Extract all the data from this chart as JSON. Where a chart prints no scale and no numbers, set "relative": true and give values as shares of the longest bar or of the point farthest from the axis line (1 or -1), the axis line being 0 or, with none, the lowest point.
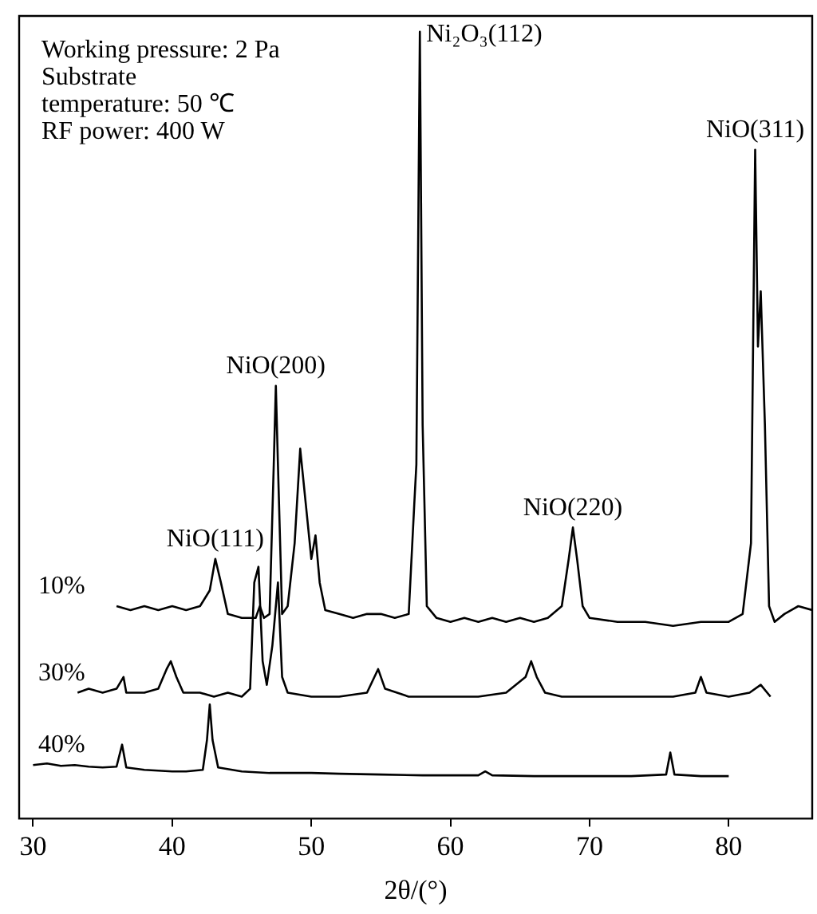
{
  "chart_data": {
    "type": "line",
    "relative": true,
    "xlabel": "2θ/(°)",
    "xlim": [
      29,
      86
    ],
    "xticks": [
      30,
      40,
      50,
      60,
      70,
      80
    ],
    "legend": false,
    "marker": "none",
    "line_style": "solid",
    "annotations": [
      "Working pressure: 2 Pa",
      "Substrate",
      "temperature: 50 ℃",
      "RF power: 400 W",
      {
        "text": "NiO(111)",
        "x": 43.1,
        "y": 0.33
      },
      {
        "text": "NiO(200)",
        "x": 47.45,
        "y": 0.55
      },
      {
        "text": "Ni₂O₃(112)",
        "x": 57.8,
        "y": 1.0
      },
      {
        "text": "NiO(220)",
        "x": 68.8,
        "y": 0.37
      },
      {
        "text": "NiO(311)",
        "x": 81.9,
        "y": 0.85
      }
    ],
    "series": [
      {
        "name": "10%",
        "color": "#000000",
        "x": [
          36,
          37,
          38,
          39,
          40,
          41,
          42,
          42.7,
          43.1,
          43.5,
          44,
          45,
          46,
          46.3,
          46.6,
          47,
          47.3,
          47.45,
          47.6,
          47.9,
          48.3,
          48.8,
          49.2,
          49.6,
          50,
          50.3,
          50.6,
          51,
          52,
          53,
          54,
          55,
          56,
          57,
          57.4,
          57.55,
          57.8,
          58,
          58.3,
          59,
          60,
          61,
          62,
          63,
          64,
          65,
          66,
          67,
          68,
          68.5,
          68.8,
          69.1,
          69.5,
          70,
          72,
          74,
          76,
          78,
          80,
          81,
          81.6,
          81.9,
          82.1,
          82.3,
          82.6,
          82.9,
          83.3,
          84,
          85,
          86
        ],
        "values": [
          0.27,
          0.265,
          0.27,
          0.265,
          0.27,
          0.265,
          0.27,
          0.29,
          0.33,
          0.3,
          0.26,
          0.255,
          0.255,
          0.27,
          0.255,
          0.26,
          0.45,
          0.55,
          0.45,
          0.26,
          0.27,
          0.35,
          0.47,
          0.4,
          0.33,
          0.36,
          0.3,
          0.265,
          0.26,
          0.255,
          0.26,
          0.26,
          0.255,
          0.26,
          0.4,
          0.45,
          1.0,
          0.5,
          0.27,
          0.255,
          0.25,
          0.255,
          0.25,
          0.255,
          0.25,
          0.255,
          0.25,
          0.255,
          0.27,
          0.33,
          0.37,
          0.33,
          0.27,
          0.255,
          0.25,
          0.25,
          0.245,
          0.25,
          0.25,
          0.26,
          0.35,
          0.85,
          0.6,
          0.67,
          0.5,
          0.27,
          0.25,
          0.26,
          0.27,
          0.265
        ]
      },
      {
        "name": "30%",
        "color": "#000000",
        "x": [
          33.2,
          34,
          35,
          36,
          36.5,
          36.7,
          38,
          39,
          39.6,
          39.9,
          40.3,
          40.8,
          42,
          43,
          44,
          45,
          45.6,
          45.9,
          46.2,
          46.5,
          46.8,
          47.2,
          47.6,
          47.9,
          48.3,
          50,
          52,
          54,
          54.8,
          55.3,
          57,
          60,
          62,
          64,
          65.4,
          65.8,
          66.2,
          66.8,
          68,
          70,
          72,
          74,
          76,
          77.6,
          78,
          78.4,
          80,
          81.5,
          82.3,
          83
        ],
        "values": [
          0.16,
          0.165,
          0.16,
          0.165,
          0.18,
          0.16,
          0.16,
          0.165,
          0.19,
          0.2,
          0.18,
          0.16,
          0.16,
          0.155,
          0.16,
          0.155,
          0.165,
          0.3,
          0.32,
          0.2,
          0.17,
          0.22,
          0.3,
          0.18,
          0.16,
          0.155,
          0.155,
          0.16,
          0.19,
          0.165,
          0.155,
          0.155,
          0.155,
          0.16,
          0.18,
          0.2,
          0.18,
          0.16,
          0.155,
          0.155,
          0.155,
          0.155,
          0.155,
          0.16,
          0.18,
          0.16,
          0.155,
          0.16,
          0.17,
          0.155
        ]
      },
      {
        "name": "40%",
        "color": "#000000",
        "x": [
          30,
          31,
          32,
          33,
          34,
          35,
          36,
          36.4,
          36.7,
          38,
          40,
          41,
          42.2,
          42.5,
          42.7,
          42.9,
          43.3,
          45,
          47,
          50,
          52,
          55,
          58,
          60,
          62,
          62.5,
          63,
          66,
          70,
          73,
          75.5,
          75.8,
          76.1,
          78,
          80
        ],
        "values": [
          0.068,
          0.07,
          0.067,
          0.068,
          0.066,
          0.065,
          0.066,
          0.094,
          0.065,
          0.062,
          0.06,
          0.06,
          0.062,
          0.1,
          0.145,
          0.1,
          0.065,
          0.06,
          0.058,
          0.058,
          0.057,
          0.056,
          0.055,
          0.055,
          0.055,
          0.06,
          0.055,
          0.054,
          0.054,
          0.054,
          0.056,
          0.084,
          0.056,
          0.054,
          0.054
        ]
      }
    ]
  }
}
